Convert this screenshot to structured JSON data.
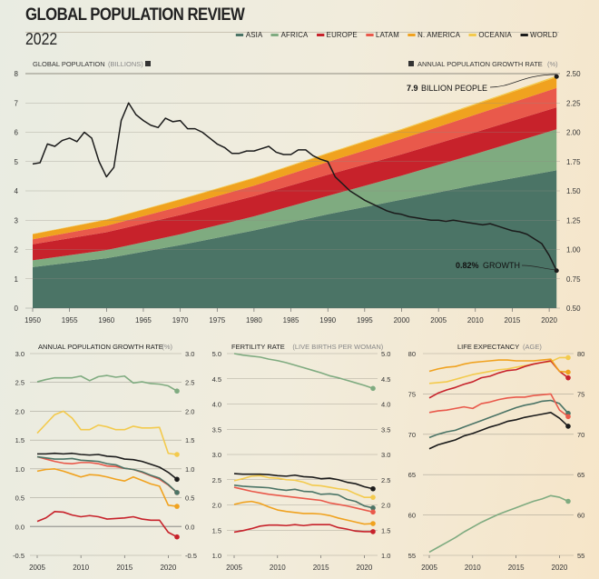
{
  "header": {
    "title": "GLOBAL POPULATION REVIEW",
    "year": "2022"
  },
  "colors": {
    "asia": "#4b7466",
    "africa": "#7fab80",
    "europe": "#c7222b",
    "latam": "#e9594b",
    "n_america": "#f0a21f",
    "oceania": "#f3ca4d",
    "world": "#1b1b1b"
  },
  "legend": [
    {
      "key": "asia",
      "label": "ASIA"
    },
    {
      "key": "africa",
      "label": "AFRICA"
    },
    {
      "key": "europe",
      "label": "EUROPE"
    },
    {
      "key": "latam",
      "label": "LATAM"
    },
    {
      "key": "n_america",
      "label": "N. AMERICA"
    },
    {
      "key": "oceania",
      "label": "OCEANIA"
    },
    {
      "key": "world",
      "label": "WORLD"
    }
  ],
  "chart_data": [
    {
      "type": "area",
      "title_left": "GLOBAL POPULATION",
      "title_left_unit": "(BILLIONS)",
      "title_right": "ANNUAL POPULATION GROWTH RATE",
      "title_right_unit": "(%)",
      "ylim": [
        0,
        8
      ],
      "y_ticks": [
        "0",
        "1",
        "2",
        "3",
        "4",
        "5",
        "6",
        "7",
        "8"
      ],
      "y2lim": [
        0.5,
        2.5
      ],
      "y2_ticks": [
        "0.50",
        "0.75",
        "1.00",
        "1.25",
        "1.50",
        "1.75",
        "2.00",
        "2.25",
        "2.50"
      ],
      "x_ticks": [
        1950,
        1955,
        1960,
        1965,
        1970,
        1975,
        1980,
        1985,
        1990,
        1995,
        2000,
        2005,
        2010,
        2015,
        2020
      ],
      "x": [
        1950,
        1960,
        1970,
        1980,
        1990,
        2000,
        2010,
        2021
      ],
      "series": [
        {
          "key": "asia",
          "name": "Asia",
          "values": [
            1.4,
            1.7,
            2.15,
            2.65,
            3.2,
            3.7,
            4.2,
            4.7
          ]
        },
        {
          "key": "africa",
          "name": "Africa",
          "values": [
            0.23,
            0.28,
            0.37,
            0.48,
            0.63,
            0.82,
            1.06,
            1.4
          ]
        },
        {
          "key": "europe",
          "name": "Europe",
          "values": [
            0.55,
            0.61,
            0.66,
            0.69,
            0.72,
            0.73,
            0.74,
            0.75
          ]
        },
        {
          "key": "latam",
          "name": "Latam",
          "values": [
            0.17,
            0.22,
            0.29,
            0.36,
            0.44,
            0.52,
            0.6,
            0.66
          ]
        },
        {
          "key": "n_america",
          "name": "N. America",
          "values": [
            0.17,
            0.2,
            0.23,
            0.25,
            0.28,
            0.31,
            0.34,
            0.37
          ]
        },
        {
          "key": "oceania",
          "name": "Oceania",
          "values": [
            0.013,
            0.016,
            0.02,
            0.023,
            0.027,
            0.031,
            0.037,
            0.045
          ]
        }
      ],
      "world_growth": {
        "start": 1950,
        "values": [
          1.73,
          1.74,
          1.9,
          1.88,
          1.93,
          1.95,
          1.92,
          2.0,
          1.95,
          1.75,
          1.62,
          1.7,
          2.1,
          2.25,
          2.15,
          2.1,
          2.06,
          2.04,
          2.12,
          2.09,
          2.1,
          2.03,
          2.03,
          2.0,
          1.95,
          1.9,
          1.87,
          1.82,
          1.82,
          1.84,
          1.84,
          1.86,
          1.88,
          1.83,
          1.81,
          1.81,
          1.85,
          1.85,
          1.8,
          1.77,
          1.75,
          1.62,
          1.56,
          1.5,
          1.46,
          1.42,
          1.39,
          1.36,
          1.33,
          1.31,
          1.3,
          1.28,
          1.27,
          1.26,
          1.25,
          1.25,
          1.24,
          1.25,
          1.24,
          1.23,
          1.22,
          1.21,
          1.22,
          1.2,
          1.18,
          1.16,
          1.15,
          1.13,
          1.09,
          1.05,
          0.95,
          0.82
        ]
      },
      "annotations": {
        "population_value": "7.9",
        "population_label": "BILLION PEOPLE",
        "growth_value": "0.82%",
        "growth_label": "GROWTH"
      }
    },
    {
      "type": "line",
      "title": "ANNUAL POPULATION GROWTH RATE",
      "title_unit": "(%)",
      "ylim": [
        -0.5,
        3.0
      ],
      "y_ticks": [
        "-0.5",
        "0.0",
        "0.5",
        "1.0",
        "1.5",
        "2.0",
        "2.5",
        "3.0"
      ],
      "x_ticks": [
        2005,
        2010,
        2015,
        2020
      ],
      "x_start": 2005,
      "series": [
        {
          "key": "africa",
          "values": [
            2.51,
            2.55,
            2.58,
            2.58,
            2.58,
            2.61,
            2.53,
            2.6,
            2.62,
            2.59,
            2.61,
            2.49,
            2.51,
            2.48,
            2.47,
            2.44,
            2.35
          ]
        },
        {
          "key": "oceania",
          "values": [
            1.62,
            1.78,
            1.94,
            2.0,
            1.88,
            1.68,
            1.68,
            1.76,
            1.73,
            1.68,
            1.68,
            1.74,
            1.71,
            1.71,
            1.72,
            1.27,
            1.25
          ]
        },
        {
          "key": "latam",
          "values": [
            1.21,
            1.17,
            1.13,
            1.1,
            1.09,
            1.11,
            1.11,
            1.09,
            1.05,
            1.04,
            1.01,
            0.99,
            0.94,
            0.88,
            0.82,
            0.72,
            0.59
          ]
        },
        {
          "key": "asia",
          "values": [
            1.21,
            1.19,
            1.17,
            1.17,
            1.18,
            1.15,
            1.14,
            1.13,
            1.09,
            1.07,
            1.01,
            0.99,
            0.95,
            0.89,
            0.84,
            0.73,
            0.59
          ]
        },
        {
          "key": "n_america",
          "values": [
            0.96,
            0.99,
            1.0,
            0.96,
            0.91,
            0.86,
            0.9,
            0.89,
            0.86,
            0.82,
            0.79,
            0.86,
            0.8,
            0.74,
            0.7,
            0.37,
            0.35
          ]
        },
        {
          "key": "europe",
          "values": [
            0.09,
            0.15,
            0.26,
            0.25,
            0.2,
            0.17,
            0.19,
            0.17,
            0.13,
            0.14,
            0.15,
            0.17,
            0.13,
            0.11,
            0.11,
            -0.1,
            -0.18
          ]
        },
        {
          "key": "world",
          "values": [
            1.26,
            1.26,
            1.27,
            1.26,
            1.27,
            1.25,
            1.24,
            1.25,
            1.22,
            1.21,
            1.17,
            1.16,
            1.13,
            1.08,
            1.03,
            0.94,
            0.82
          ]
        }
      ]
    },
    {
      "type": "line",
      "title": "FERTILITY RATE",
      "title_unit": "(LIVE BIRTHS PER WOMAN)",
      "ylim": [
        1.0,
        5.0
      ],
      "y_ticks": [
        "1.0",
        "1.5",
        "2.0",
        "2.5",
        "3.0",
        "3.5",
        "4.0",
        "4.5",
        "5.0"
      ],
      "x_ticks": [
        2005,
        2010,
        2015,
        2020
      ],
      "x_start": 2005,
      "series": [
        {
          "key": "africa",
          "values": [
            5.0,
            4.97,
            4.95,
            4.93,
            4.89,
            4.86,
            4.82,
            4.77,
            4.72,
            4.67,
            4.62,
            4.56,
            4.52,
            4.47,
            4.42,
            4.37,
            4.31
          ]
        },
        {
          "key": "oceania",
          "values": [
            2.48,
            2.52,
            2.57,
            2.58,
            2.54,
            2.53,
            2.5,
            2.49,
            2.45,
            2.39,
            2.38,
            2.35,
            2.32,
            2.3,
            2.22,
            2.15,
            2.15
          ]
        },
        {
          "key": "asia",
          "values": [
            2.39,
            2.37,
            2.36,
            2.35,
            2.34,
            2.31,
            2.29,
            2.31,
            2.27,
            2.26,
            2.21,
            2.22,
            2.2,
            2.11,
            2.07,
            1.98,
            1.94
          ]
        },
        {
          "key": "latam",
          "values": [
            2.35,
            2.31,
            2.27,
            2.24,
            2.21,
            2.19,
            2.17,
            2.15,
            2.13,
            2.11,
            2.09,
            2.04,
            2.01,
            1.98,
            1.94,
            1.9,
            1.86
          ]
        },
        {
          "key": "n_america",
          "values": [
            2.01,
            2.05,
            2.07,
            2.03,
            1.96,
            1.9,
            1.87,
            1.85,
            1.83,
            1.83,
            1.82,
            1.79,
            1.74,
            1.7,
            1.66,
            1.62,
            1.63
          ]
        },
        {
          "key": "europe",
          "values": [
            1.46,
            1.49,
            1.53,
            1.58,
            1.6,
            1.6,
            1.59,
            1.61,
            1.59,
            1.61,
            1.61,
            1.61,
            1.55,
            1.52,
            1.48,
            1.47,
            1.47
          ]
        },
        {
          "key": "world",
          "values": [
            2.62,
            2.61,
            2.61,
            2.61,
            2.6,
            2.58,
            2.57,
            2.59,
            2.56,
            2.55,
            2.52,
            2.53,
            2.5,
            2.45,
            2.42,
            2.36,
            2.32
          ]
        }
      ]
    },
    {
      "type": "line",
      "title": "LIFE EXPECTANCY",
      "title_unit": "(AGE)",
      "ylim": [
        55,
        80
      ],
      "y_ticks": [
        "55",
        "60",
        "65",
        "70",
        "75",
        "80"
      ],
      "x_ticks": [
        2005,
        2010,
        2015,
        2020
      ],
      "x_start": 2005,
      "series": [
        {
          "key": "africa",
          "values": [
            55.4,
            56.0,
            56.6,
            57.2,
            57.9,
            58.5,
            59.1,
            59.6,
            60.1,
            60.5,
            60.9,
            61.3,
            61.7,
            62.0,
            62.4,
            62.2,
            61.7
          ]
        },
        {
          "key": "world",
          "values": [
            68.2,
            68.7,
            69.0,
            69.3,
            69.8,
            70.1,
            70.5,
            70.9,
            71.2,
            71.6,
            71.8,
            72.1,
            72.3,
            72.5,
            72.7,
            72.0,
            71.0
          ]
        },
        {
          "key": "asia",
          "values": [
            69.6,
            70.0,
            70.3,
            70.5,
            70.9,
            71.3,
            71.7,
            72.1,
            72.5,
            72.9,
            73.3,
            73.6,
            73.8,
            74.1,
            74.2,
            73.8,
            72.6
          ]
        },
        {
          "key": "latam",
          "values": [
            72.7,
            72.9,
            73.0,
            73.2,
            73.4,
            73.2,
            73.8,
            74.0,
            74.3,
            74.5,
            74.6,
            74.6,
            74.8,
            74.9,
            75.0,
            73.0,
            72.2
          ]
        },
        {
          "key": "oceania",
          "values": [
            76.3,
            76.4,
            76.5,
            76.8,
            77.1,
            77.4,
            77.6,
            77.8,
            78.0,
            78.1,
            78.3,
            78.5,
            78.7,
            78.9,
            79.0,
            79.5,
            79.5
          ]
        },
        {
          "key": "europe",
          "values": [
            74.5,
            75.1,
            75.5,
            75.8,
            76.2,
            76.5,
            77.0,
            77.2,
            77.6,
            77.9,
            78.0,
            78.4,
            78.7,
            78.9,
            79.1,
            77.8,
            77.0
          ]
        },
        {
          "key": "n_america",
          "values": [
            77.8,
            78.1,
            78.3,
            78.4,
            78.7,
            78.9,
            79.0,
            79.1,
            79.2,
            79.2,
            79.1,
            79.1,
            79.1,
            79.2,
            79.3,
            77.8,
            77.7
          ]
        }
      ]
    }
  ]
}
